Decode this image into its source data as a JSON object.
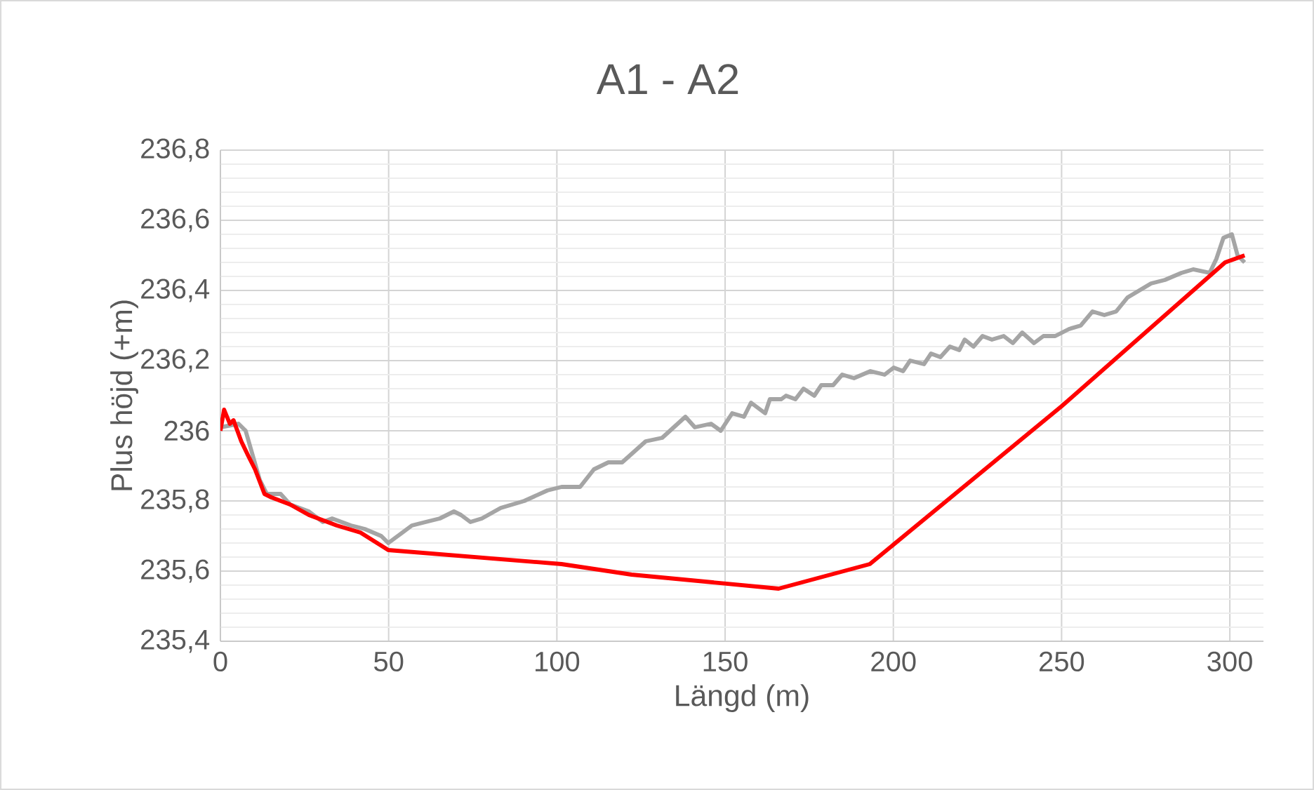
{
  "chart_data": {
    "type": "line",
    "title": "A1 - A2",
    "xlabel": "Längd (m)",
    "ylabel": "Plus höjd (+m)",
    "xlim": [
      0,
      310
    ],
    "xticks": [
      0,
      50,
      100,
      150,
      200,
      250,
      300
    ],
    "ylim": [
      235.4,
      236.8
    ],
    "yticks": [
      {
        "value": 235.4,
        "label": "235,4"
      },
      {
        "value": 235.6,
        "label": "235,6"
      },
      {
        "value": 235.8,
        "label": "235,8"
      },
      {
        "value": 236,
        "label": "236"
      },
      {
        "value": 236.2,
        "label": "236,2"
      },
      {
        "value": 236.4,
        "label": "236,4"
      },
      {
        "value": 236.6,
        "label": "236,6"
      },
      {
        "value": 236.8,
        "label": "236,8"
      }
    ],
    "grid": true,
    "marker": "none",
    "line_style": "solid",
    "series": [
      {
        "color": "#a5a5a5",
        "x": [
          0,
          5.4,
          7.5,
          9.6,
          11.7,
          13.8,
          17.9,
          20.7,
          26.3,
          30.4,
          33.2,
          38.8,
          42.9,
          47.8,
          49.9,
          52.7,
          56.9,
          61,
          65.2,
          69.4,
          71.5,
          74.3,
          77.7,
          83.3,
          90.3,
          97.2,
          101.4,
          106.9,
          111,
          115.3,
          119.4,
          122.9,
          126.4,
          131.3,
          138.2,
          141,
          145.8,
          148.7,
          152.1,
          155.6,
          157.7,
          161.9,
          163.3,
          166.7,
          168.1,
          170.9,
          173.3,
          176.5,
          178.6,
          182.1,
          184.8,
          188.3,
          193.2,
          197.4,
          200.1,
          202.9,
          205,
          209.1,
          211.2,
          214,
          216.8,
          219.6,
          221.2,
          223.8,
          226.5,
          229.3,
          232.8,
          235.5,
          238.3,
          241.8,
          244.6,
          248.1,
          252.2,
          255.7,
          259.2,
          262.7,
          266.2,
          269.6,
          273.1,
          276.6,
          280.7,
          285.6,
          289.1,
          294,
          296,
          298.1,
          300.6,
          302.3,
          304.4
        ],
        "values": [
          236.01,
          236.02,
          236,
          235.93,
          235.86,
          235.82,
          235.82,
          235.79,
          235.77,
          235.74,
          235.75,
          235.73,
          235.72,
          235.7,
          235.68,
          235.7,
          235.73,
          235.74,
          235.75,
          235.77,
          235.76,
          235.74,
          235.75,
          235.78,
          235.8,
          235.83,
          235.84,
          235.84,
          235.89,
          235.91,
          235.91,
          235.94,
          235.97,
          235.98,
          236.04,
          236.01,
          236.02,
          236,
          236.05,
          236.04,
          236.08,
          236.05,
          236.09,
          236.09,
          236.1,
          236.09,
          236.12,
          236.1,
          236.13,
          236.13,
          236.16,
          236.15,
          236.17,
          236.16,
          236.18,
          236.17,
          236.2,
          236.19,
          236.22,
          236.21,
          236.24,
          236.23,
          236.26,
          236.24,
          236.27,
          236.26,
          236.27,
          236.25,
          236.28,
          236.25,
          236.27,
          236.27,
          236.29,
          236.3,
          236.34,
          236.33,
          236.34,
          236.38,
          236.4,
          236.42,
          236.43,
          236.45,
          236.46,
          236.45,
          236.49,
          236.55,
          236.56,
          236.5,
          236.48
        ]
      },
      {
        "color": "#ff0000",
        "x": [
          0,
          1.1,
          2.8,
          3.9,
          6.2,
          8.2,
          10.3,
          13.1,
          15.2,
          20.7,
          26.3,
          34.6,
          41.6,
          49.9,
          101.4,
          122.2,
          165.9,
          193,
          250,
          298.6,
          304.4
        ],
        "values": [
          236,
          236.06,
          236.02,
          236.03,
          235.97,
          235.93,
          235.89,
          235.82,
          235.81,
          235.79,
          235.76,
          235.73,
          235.71,
          235.66,
          235.62,
          235.59,
          235.55,
          235.62,
          236.07,
          236.48,
          236.5
        ]
      }
    ]
  }
}
